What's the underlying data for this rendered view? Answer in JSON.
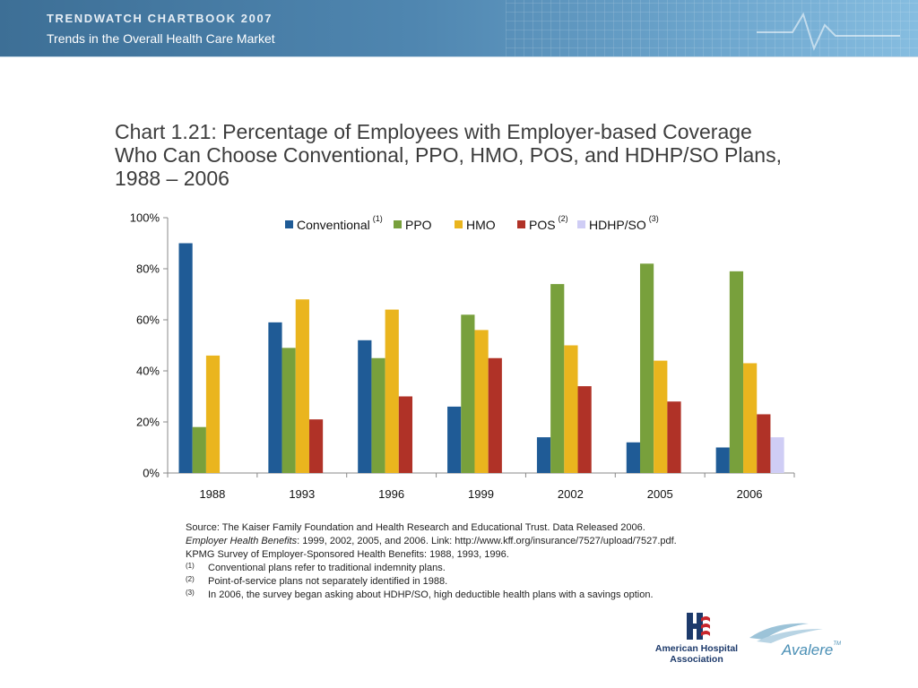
{
  "header": {
    "title": "TRENDWATCH CHARTBOOK 2007",
    "subtitle": "Trends in the Overall Health Care Market"
  },
  "chart_title_lines": [
    "Chart 1.21: Percentage of Employees with Employer-based Coverage",
    "Who Can Choose Conventional, PPO, HMO, POS, and HDHP/SO Plans,",
    "1988 – 2006"
  ],
  "chart_data": {
    "type": "bar",
    "categories": [
      "1988",
      "1993",
      "1996",
      "1999",
      "2002",
      "2005",
      "2006"
    ],
    "ylim": [
      0,
      100
    ],
    "yticks": [
      "0%",
      "20%",
      "40%",
      "60%",
      "80%",
      "100%"
    ],
    "ytick_values": [
      0,
      20,
      40,
      60,
      80,
      100
    ],
    "legend_position": "top-center",
    "grid": false,
    "series": [
      {
        "name": "Conventional",
        "sup": "(1)",
        "color": "#1f5b96",
        "values": [
          90,
          59,
          52,
          26,
          14,
          12,
          10
        ]
      },
      {
        "name": "PPO",
        "sup": "",
        "color": "#78a03c",
        "values": [
          18,
          49,
          45,
          62,
          74,
          82,
          79
        ]
      },
      {
        "name": "HMO",
        "sup": "",
        "color": "#eab51e",
        "values": [
          46,
          68,
          64,
          56,
          50,
          44,
          43
        ]
      },
      {
        "name": "POS",
        "sup": "(2)",
        "color": "#b03227",
        "values": [
          null,
          21,
          30,
          45,
          34,
          28,
          23
        ]
      },
      {
        "name": "HDHP/SO",
        "sup": "(3)",
        "color": "#cfcdf5",
        "values": [
          null,
          null,
          null,
          null,
          null,
          null,
          14
        ]
      }
    ]
  },
  "source": {
    "line1": "Source:  The Kaiser Family Foundation and Health Research and Educational Trust. Data Released 2006.",
    "line2_italic": "Employer Health Benefits",
    "line2_rest": ": 1999, 2002, 2005, and 2006. Link: http://www.kff.org/insurance/7527/upload/7527.pdf.",
    "line3": "KPMG Survey of Employer-Sponsored Health Benefits: 1988, 1993, 1996.",
    "footnotes": [
      {
        "mark": "(1)",
        "text": "Conventional plans refer to traditional indemnity plans."
      },
      {
        "mark": "(2)",
        "text": "Point-of-service plans not separately identified in 1988."
      },
      {
        "mark": "(3)",
        "text": "In 2006, the survey began asking about HDHP/SO, high deductible health plans with a savings option."
      }
    ]
  },
  "logos": {
    "aha_line1": "American Hospital",
    "aha_line2": "Association",
    "avalere": "Avalere",
    "avalere_tm": "TM"
  }
}
